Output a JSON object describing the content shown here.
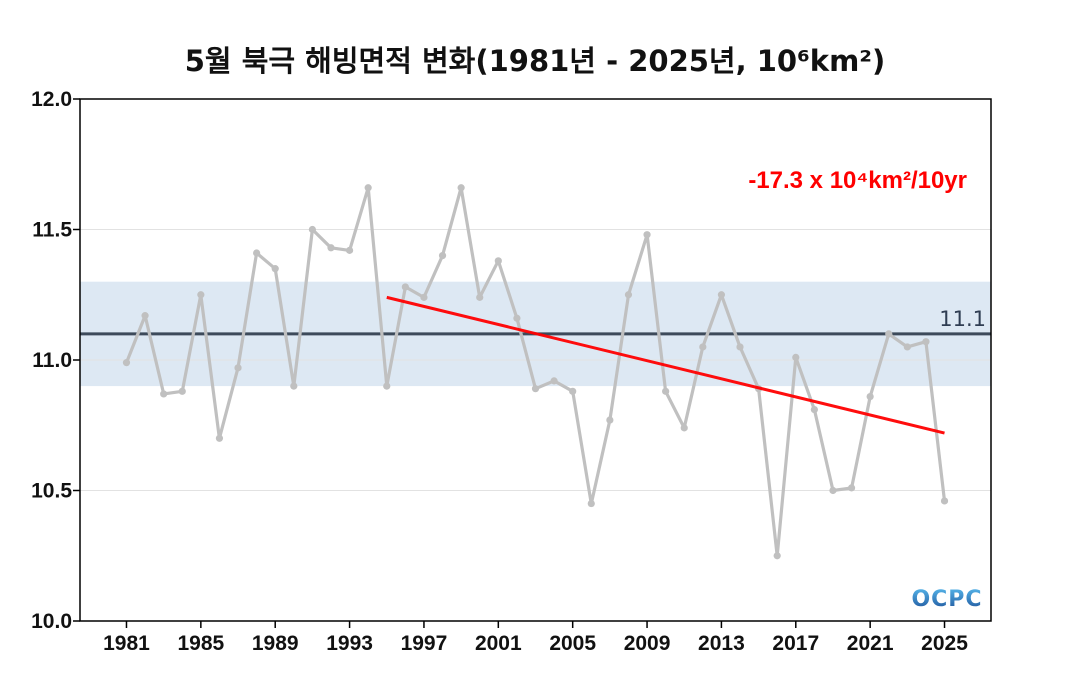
{
  "chart_data": {
    "type": "line",
    "title": "5월 북극 해빙면적 변화(1981년 - 2025년, 10⁶km²)",
    "xlabel": "",
    "ylabel": "",
    "ylim": [
      10.0,
      12.0
    ],
    "xlim": [
      1978.5,
      2027.5
    ],
    "x_ticks": [
      1981,
      1985,
      1989,
      1993,
      1997,
      2001,
      2005,
      2009,
      2013,
      2017,
      2021,
      2025
    ],
    "y_ticks": [
      10.0,
      10.5,
      11.0,
      11.5,
      12.0
    ],
    "y_tick_labels": [
      "10.0",
      "10.5",
      "11.0",
      "11.5",
      "12.0"
    ],
    "grid": "horizontal",
    "series": [
      {
        "x": [
          1981,
          1982,
          1983,
          1984,
          1985,
          1986,
          1987,
          1988,
          1989,
          1990,
          1991,
          1992,
          1993,
          1994,
          1995,
          1996,
          1997,
          1998,
          1999,
          2000,
          2001,
          2002,
          2003,
          2004,
          2005,
          2006,
          2007,
          2008,
          2009,
          2010,
          2011,
          2012,
          2013,
          2014,
          2015,
          2016,
          2017,
          2018,
          2019,
          2020,
          2021,
          2022,
          2023,
          2024,
          2025
        ],
        "values": [
          10.99,
          11.17,
          10.87,
          10.88,
          11.25,
          10.7,
          10.97,
          11.41,
          11.35,
          10.9,
          11.5,
          11.43,
          11.42,
          11.66,
          10.9,
          11.28,
          11.24,
          11.4,
          11.66,
          11.24,
          11.38,
          11.16,
          10.89,
          10.92,
          10.88,
          10.45,
          10.77,
          11.25,
          11.48,
          10.88,
          10.74,
          11.05,
          11.25,
          11.05,
          10.89,
          10.25,
          11.01,
          10.81,
          10.5,
          10.51,
          10.86,
          11.1,
          11.05,
          11.07,
          10.46
        ],
        "color": "#c0c0c0"
      }
    ],
    "mean": {
      "value": 11.1,
      "label": "11.1",
      "color": "#3d4a5a"
    },
    "band": {
      "low": 10.9,
      "high": 11.3,
      "color": "#dde8f3"
    },
    "trend": {
      "x_start": 1995,
      "y_start": 11.24,
      "x_end": 2025,
      "y_end": 10.72,
      "color": "#ff0000",
      "label": "-17.3 x 10⁴km²/10yr"
    },
    "logo": {
      "text": "OCPC"
    }
  }
}
